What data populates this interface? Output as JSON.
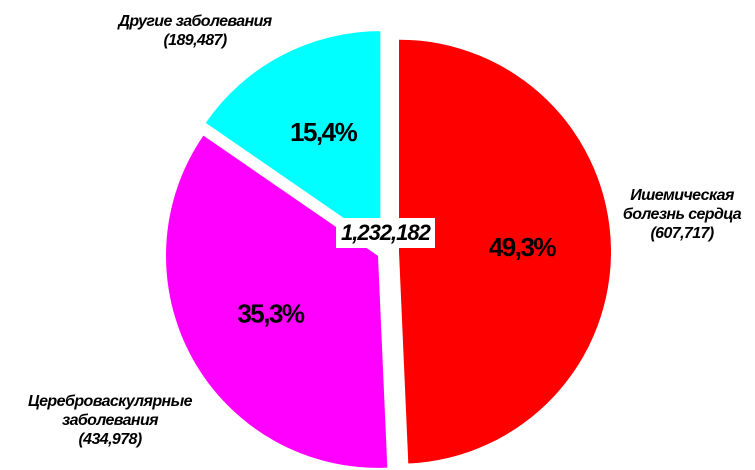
{
  "chart_data": {
    "type": "pie",
    "categories": [
      "Ишемическая\nболезнь сердца",
      "Цереброваскулярные\nзаболевания",
      "Другие заболевания"
    ],
    "values": [
      49.3,
      35.3,
      15.4
    ],
    "value_labels": [
      "49,3%",
      "35,3%",
      "15,4%"
    ],
    "counts": [
      607717,
      434978,
      189487
    ],
    "count_labels": [
      "(607,717)",
      "(434,978)",
      "(189,487)"
    ],
    "colors": [
      "#ff0000",
      "#ff00ff",
      "#00ffff"
    ],
    "total": 1232182,
    "total_label": "1,232,182"
  }
}
